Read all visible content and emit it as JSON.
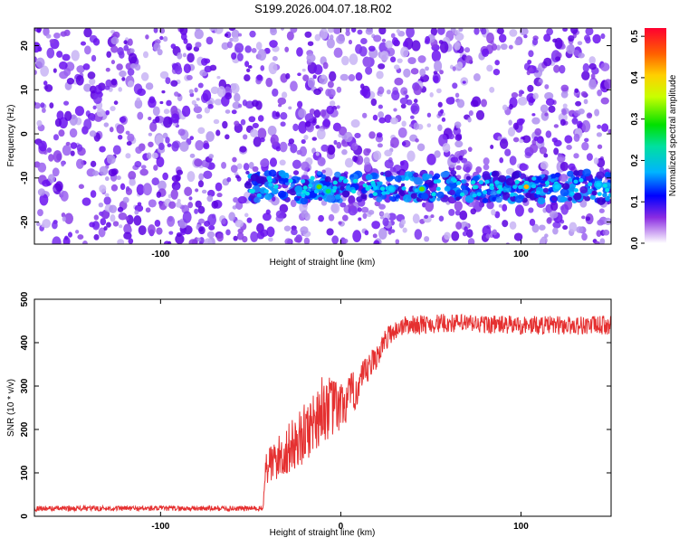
{
  "title": "S199.2026.004.07.18.R02",
  "colors": {
    "spectro_bg": "#ffffff",
    "spectro_dot": "#6a00e8",
    "spectro_dot_light": "#b9a0f0",
    "snr_line": "#e53030"
  },
  "chart_data": [
    {
      "type": "heatmap",
      "name": "spectrogram",
      "xlabel": "Height of straight line (km)",
      "ylabel": "Frequency (Hz)",
      "xlim": [
        -170,
        150
      ],
      "ylim": [
        -25,
        24
      ],
      "xticks": [
        -100,
        0,
        100
      ],
      "xtick_labels": [
        "-100",
        "0",
        "100"
      ],
      "yticks": [
        20,
        10,
        0,
        -10,
        -20
      ],
      "ytick_labels": [
        "20",
        "10",
        "0",
        "-10",
        "-20"
      ],
      "signal_band": {
        "x_start": -52,
        "x_end": 150,
        "freq_center": -12,
        "freq_halfwidth": 2.5
      },
      "hotspots": [
        {
          "x": -12,
          "y": -12,
          "amp": 0.28
        },
        {
          "x": -7,
          "y": -13,
          "amp": 0.22
        },
        {
          "x": 28,
          "y": -12.5,
          "amp": 0.18
        },
        {
          "x": 45,
          "y": -12.5,
          "amp": 0.32
        },
        {
          "x": 103,
          "y": -12,
          "amp": 0.45
        },
        {
          "x": 120,
          "y": -12,
          "amp": 0.2
        },
        {
          "x": 143,
          "y": -11.5,
          "amp": 0.15
        }
      ],
      "colorbar": {
        "label": "Normalized spectral amplitude",
        "range": [
          0.0,
          0.52
        ],
        "ticks": [
          0.0,
          0.1,
          0.2,
          0.3,
          0.4,
          0.5
        ],
        "tick_labels": [
          "0.0",
          "0.1",
          "0.2",
          "0.3",
          "0.4",
          "0.5"
        ]
      }
    },
    {
      "type": "line",
      "name": "snr",
      "xlabel": "Height of straight line (km)",
      "ylabel": "SNR (10 * v/v)",
      "xlim": [
        -170,
        150
      ],
      "ylim": [
        0,
        500
      ],
      "xticks": [
        -100,
        0,
        100
      ],
      "xtick_labels": [
        "-100",
        "0",
        "100"
      ],
      "yticks": [
        0,
        100,
        200,
        300,
        400,
        500
      ],
      "ytick_labels": [
        "0",
        "100",
        "200",
        "300",
        "400",
        "500"
      ],
      "profile_x": [
        -170,
        -43,
        -42,
        -30,
        -20,
        -10,
        0,
        10,
        20,
        27,
        35,
        60,
        100,
        150
      ],
      "profile_y": [
        18,
        18,
        110,
        150,
        190,
        250,
        250,
        300,
        370,
        420,
        440,
        445,
        440,
        440
      ],
      "noise_amp_x": [
        -170,
        -43,
        -42,
        -10,
        0,
        20,
        30,
        150
      ],
      "noise_amp_y": [
        6,
        6,
        45,
        80,
        60,
        30,
        22,
        22
      ]
    }
  ]
}
